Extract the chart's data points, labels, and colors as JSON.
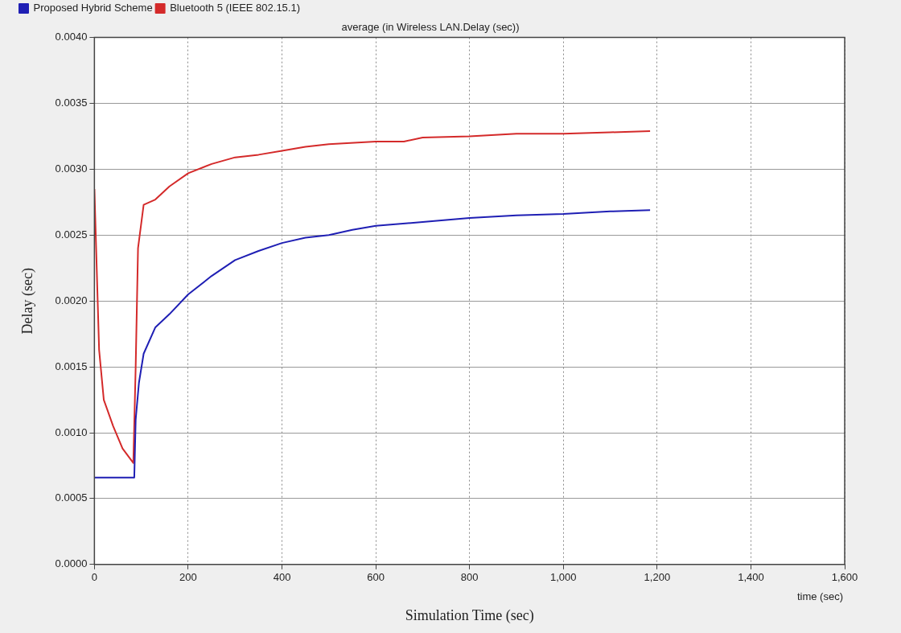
{
  "chart_data": {
    "type": "line",
    "title": "average (in Wireless LAN.Delay (sec))",
    "xlabel": "Simulation Time (sec)",
    "ylabel": "Delay (sec)",
    "annotations": [
      "time (sec)"
    ],
    "xlim": [
      0,
      1600
    ],
    "xticks": [
      0,
      200,
      400,
      600,
      800,
      {
        "value": 1000,
        "label": "1,000"
      },
      {
        "value": 1200,
        "label": "1,200"
      },
      {
        "value": 1400,
        "label": "1,400"
      },
      {
        "value": 1600,
        "label": "1,600"
      }
    ],
    "ylim": [
      0,
      0.004
    ],
    "yticks": [
      {
        "value": 0,
        "label": "0.0000"
      },
      {
        "value": 0.0005,
        "label": "0.0005"
      },
      {
        "value": 0.001,
        "label": "0.0010"
      },
      {
        "value": 0.0015,
        "label": "0.0015"
      },
      {
        "value": 0.002,
        "label": "0.0020"
      },
      {
        "value": 0.0025,
        "label": "0.0025"
      },
      {
        "value": 0.003,
        "label": "0.0030"
      },
      {
        "value": 0.0035,
        "label": "0.0035"
      },
      {
        "value": 0.004,
        "label": "0.0040"
      }
    ],
    "grid": true,
    "legend": "top left",
    "marker": "none",
    "line_style": "solid",
    "series": [
      {
        "name": "Proposed Hybrid Scheme",
        "color": "#1f1fb4",
        "x": [
          0,
          85,
          88,
          95,
          105,
          130,
          160,
          200,
          250,
          300,
          350,
          400,
          450,
          500,
          550,
          600,
          700,
          800,
          900,
          1000,
          1100,
          1185
        ],
        "values": [
          0.00066,
          0.00066,
          0.0011,
          0.00138,
          0.0016,
          0.0018,
          0.0019,
          0.00205,
          0.00219,
          0.00231,
          0.00238,
          0.00244,
          0.00248,
          0.0025,
          0.00254,
          0.00257,
          0.0026,
          0.00263,
          0.00265,
          0.00266,
          0.00268,
          0.00269
        ]
      },
      {
        "name": "Bluetooth 5 (IEEE 802.15.1)",
        "color": "#d42a2a",
        "x": [
          0,
          10,
          20,
          40,
          60,
          83,
          88,
          93,
          105,
          130,
          160,
          200,
          250,
          300,
          350,
          400,
          450,
          500,
          600,
          660,
          700,
          800,
          900,
          1000,
          1100,
          1185
        ],
        "values": [
          0.00285,
          0.00163,
          0.00125,
          0.00105,
          0.00088,
          0.00077,
          0.0015,
          0.0024,
          0.00273,
          0.00277,
          0.00287,
          0.00297,
          0.00304,
          0.00309,
          0.00311,
          0.00314,
          0.00317,
          0.00319,
          0.00321,
          0.00321,
          0.00324,
          0.00325,
          0.00327,
          0.00327,
          0.00328,
          0.00329
        ]
      }
    ]
  }
}
